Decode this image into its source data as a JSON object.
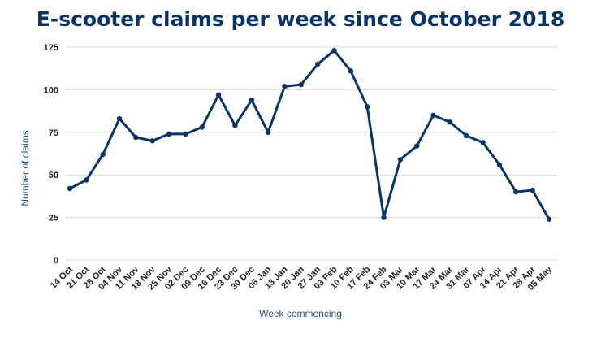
{
  "chart_data": {
    "type": "line",
    "title": "E-scooter claims per week since October 2018",
    "xlabel": "Week commencing",
    "ylabel": "Number of claims",
    "ylim": [
      0,
      125
    ],
    "yticks": [
      0,
      25,
      50,
      75,
      100,
      125
    ],
    "grid": true,
    "line_color": "#0b3466",
    "categories": [
      "14 Oct",
      "21 Oct",
      "28 Oct",
      "04 Nov",
      "11 Nov",
      "18 Nov",
      "25 Nov",
      "02 Dec",
      "09 Dec",
      "16 Dec",
      "23 Dec",
      "30 Dec",
      "06 Jan",
      "13 Jan",
      "20 Jan",
      "27 Jan",
      "03 Feb",
      "10 Feb",
      "17 Feb",
      "24 Feb",
      "03 Mar",
      "10 Mar",
      "17 Mar",
      "24 Mar",
      "31 Mar",
      "07 Apr",
      "14 Apr",
      "21 Apr",
      "28 Apr",
      "05 May"
    ],
    "values": [
      42,
      47,
      62,
      83,
      72,
      70,
      74,
      74,
      78,
      97,
      79,
      94,
      75,
      102,
      103,
      115,
      123,
      111,
      90,
      25,
      59,
      67,
      85,
      81,
      73,
      69,
      56,
      40,
      41,
      24
    ]
  }
}
